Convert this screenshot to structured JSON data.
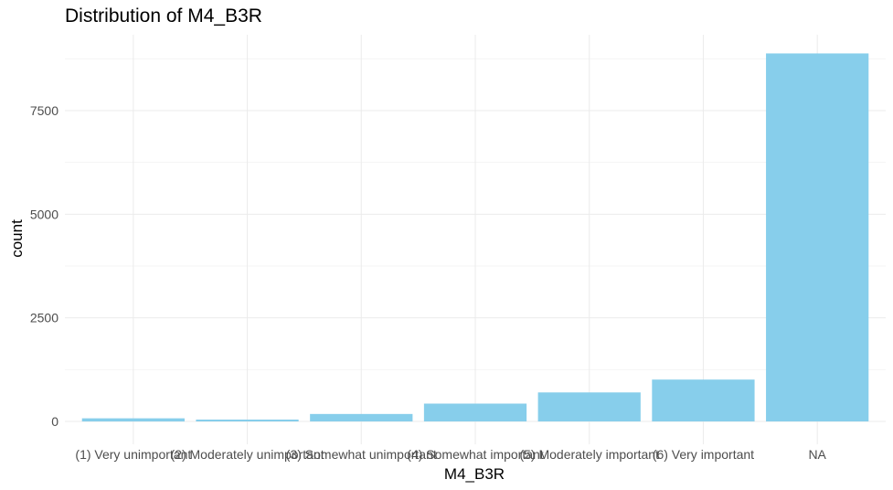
{
  "chart_data": {
    "type": "bar",
    "title": "Distribution of M4_B3R",
    "xlabel": "M4_B3R",
    "ylabel": "count",
    "categories": [
      "(1) Very unimportant",
      "(2) Moderately unimportant",
      "(3) Somewhat unimportant",
      "(4) Somewhat important",
      "(5) Moderately important",
      "(6) Very important",
      "NA"
    ],
    "values": [
      75,
      45,
      180,
      430,
      700,
      1010,
      8880
    ],
    "ylim": [
      0,
      9300
    ],
    "yticks": [
      0,
      2500,
      5000,
      7500
    ],
    "ytick_labels": [
      "0",
      "2500",
      "5000",
      "7500"
    ],
    "bar_color": "#87CEEB",
    "grid": true,
    "legend": "none"
  }
}
